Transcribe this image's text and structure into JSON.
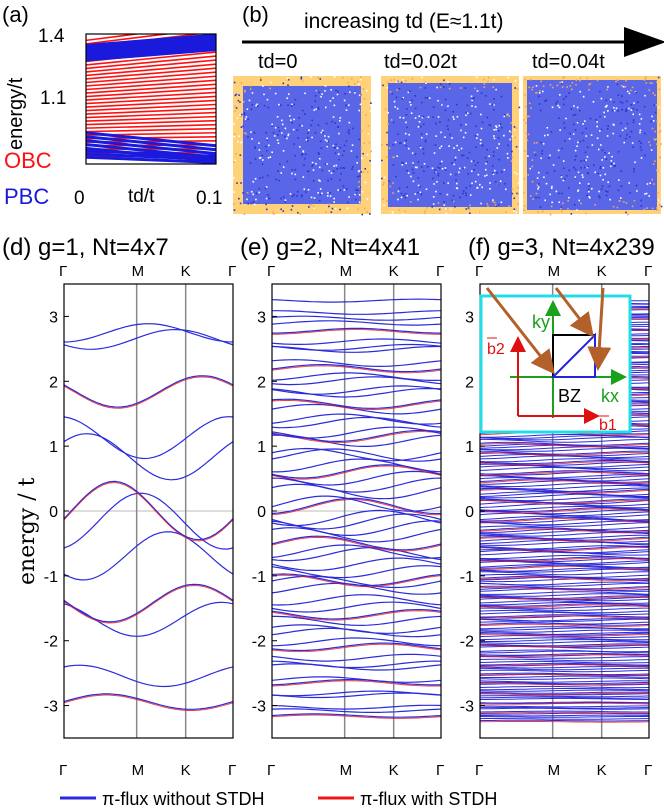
{
  "colors": {
    "pbc": "#1a1adc",
    "obc": "#ff1010",
    "band_blue": "#3030e0",
    "band_red": "#ee1818",
    "inset_frame": "#22dde8",
    "arrow": "#b4602a",
    "kx_axis": "#1aa01a",
    "b_vec": "#e01010",
    "line_blue": "#2b2bdd"
  },
  "panel_a": {
    "letter": "(a)",
    "ylabel": "energy/t",
    "xlabel": "td/t",
    "yticks": [
      "1.4",
      "1.1"
    ],
    "xticks": [
      "0",
      "0.1"
    ],
    "obc_label": "OBC",
    "pbc_label": "PBC"
  },
  "panel_b": {
    "letter": "(b)",
    "arrow_title": "increasing td  (E≈1.1t)",
    "maps": [
      {
        "label": "td=0",
        "edge_weight": 0.3
      },
      {
        "label": "td=0.02t",
        "edge_weight": 0.5
      },
      {
        "label": "td=0.04t",
        "edge_weight": 0.75
      }
    ]
  },
  "bands_common": {
    "k_labels": [
      "Γ",
      "M",
      "K",
      "Γ"
    ],
    "ylabel": "energy / t",
    "yticks": [
      "3",
      "2",
      "1",
      "0",
      "-1",
      "-2",
      "-3"
    ]
  },
  "panels": [
    {
      "title": "(d) g=1, Nt=4x7",
      "g": 1
    },
    {
      "title": "(e) g=2, Nt=4x41",
      "g": 2
    },
    {
      "title": "(f) g=3, Nt=4x239",
      "g": 3
    }
  ],
  "inset": {
    "ky": "ky",
    "kx": "kx",
    "bz": "BZ",
    "b1": "b1",
    "b2": "b2"
  },
  "legend": [
    {
      "label": "π-flux without STDH",
      "color": "#2b2bdd"
    },
    {
      "label": "π-flux with STDH",
      "color": "#ee1818"
    }
  ],
  "chart_data": [
    {
      "type": "line",
      "title": "",
      "xlabel": "td/t",
      "ylabel": "energy/t",
      "xlim": [
        0,
        0.1
      ],
      "ylim": [
        0.9,
        1.4
      ],
      "series": [
        {
          "name": "OBC",
          "description_of_trend": "many levels; upper group near 1.3-1.4 slightly rising, lower group fanning apart"
        },
        {
          "name": "PBC",
          "description_of_trend": "dense blue bands near 1.32 and near 0.95-1.0"
        }
      ]
    },
    {
      "type": "line",
      "title": "(d) g=1, Nt=4x7",
      "xlabel": "",
      "ylabel": "energy / t",
      "x_ticks": [
        "Γ",
        "M",
        "K",
        "Γ"
      ],
      "ylim": [
        -3.4,
        3.4
      ],
      "series": [
        {
          "name": "π-flux without STDH"
        },
        {
          "name": "π-flux with STDH"
        }
      ],
      "approx_levels_at_gamma": [
        3.2,
        2.3,
        2.0,
        1.7,
        0.35,
        0.05,
        -0.05,
        -0.35,
        -1.7,
        -2.0,
        -2.3,
        -3.2
      ]
    },
    {
      "type": "line",
      "title": "(e) g=2, Nt=4x41",
      "xlabel": "",
      "ylabel": "",
      "x_ticks": [
        "Γ",
        "M",
        "K",
        "Γ"
      ],
      "ylim": [
        -3.4,
        3.4
      ],
      "series": [
        {
          "name": "π-flux without STDH"
        },
        {
          "name": "π-flux with STDH"
        }
      ]
    },
    {
      "type": "line",
      "title": "(f) g=3, Nt=4x239",
      "xlabel": "",
      "ylabel": "",
      "x_ticks": [
        "Γ",
        "M",
        "K",
        "Γ"
      ],
      "ylim": [
        -3.4,
        3.4
      ],
      "series": [
        {
          "name": "π-flux without STDH"
        },
        {
          "name": "π-flux with STDH"
        }
      ]
    }
  ]
}
